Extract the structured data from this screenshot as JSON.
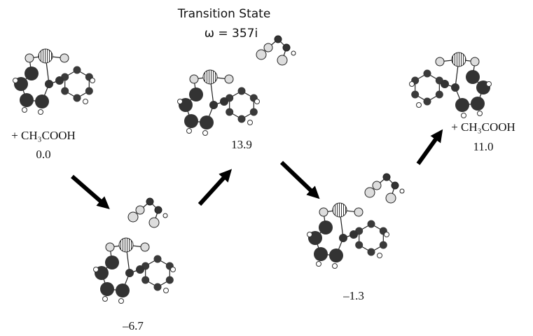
{
  "header": {
    "title": "Transition State",
    "frequency": "ω = 357i"
  },
  "states": [
    {
      "reagent": "+ CH₃COOH",
      "energy": "0.0"
    },
    {
      "energy": "–6.7"
    },
    {
      "energy": "13.9"
    },
    {
      "energy": "–1.3"
    },
    {
      "reagent": "+ CH₃COOH",
      "energy": "11.0"
    }
  ]
}
